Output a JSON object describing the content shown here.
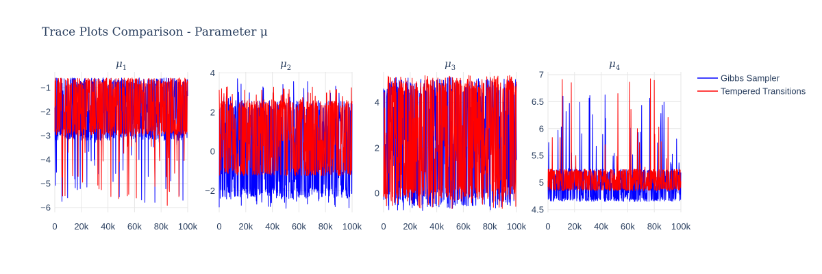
{
  "title": "Trace Plots Comparison - Parameter μ",
  "legend": [
    {
      "name": "Gibbs Sampler",
      "color": "#0000ff"
    },
    {
      "name": "Tempered Transitions",
      "color": "#ff0000"
    }
  ],
  "chart_data": [
    {
      "type": "line",
      "title": "μ1",
      "title_base": "μ",
      "title_sub": "1",
      "xlim": [
        0,
        100000
      ],
      "ylim": [
        -6.2,
        -0.35
      ],
      "xticks": [
        0,
        20000,
        40000,
        60000,
        80000,
        100000
      ],
      "xtick_labels": [
        "0",
        "20k",
        "40k",
        "60k",
        "80k",
        "100k"
      ],
      "yticks": [
        -6,
        -5,
        -4,
        -3,
        -2,
        -1
      ],
      "ytick_labels": [
        "−6",
        "−5",
        "−4",
        "−3",
        "−2",
        "−1"
      ],
      "series": [
        {
          "name": "Gibbs Sampler",
          "color": "#0000ff",
          "band": [
            -3.2,
            -0.6
          ],
          "tail": [
            -5.85,
            -0.6
          ],
          "tail_side": "low",
          "base": -1.9
        },
        {
          "name": "Tempered Transitions",
          "color": "#ff0000",
          "band": [
            -3.0,
            -0.6
          ],
          "tail": [
            -6.0,
            -0.6
          ],
          "tail_side": "low",
          "base": -1.9
        }
      ]
    },
    {
      "type": "line",
      "title": "μ2",
      "title_base": "μ",
      "title_sub": "2",
      "xlim": [
        0,
        100000
      ],
      "ylim": [
        -3.1,
        4.05
      ],
      "xticks": [
        0,
        20000,
        40000,
        60000,
        80000,
        100000
      ],
      "xtick_labels": [
        "0",
        "20k",
        "40k",
        "60k",
        "80k",
        "100k"
      ],
      "yticks": [
        -2,
        0,
        2,
        4
      ],
      "ytick_labels": [
        "−2",
        "0",
        "2",
        "4"
      ],
      "series": [
        {
          "name": "Gibbs Sampler",
          "color": "#0000ff",
          "band": [
            -2.4,
            2.6
          ],
          "tail": [
            -2.9,
            3.8
          ],
          "tail_side": "both",
          "base": 0.5
        },
        {
          "name": "Tempered Transitions",
          "color": "#ff0000",
          "band": [
            -1.25,
            2.6
          ],
          "tail": [
            -1.3,
            3.3
          ],
          "tail_side": "high",
          "base": 0.7
        }
      ]
    },
    {
      "type": "line",
      "title": "μ3",
      "title_base": "μ",
      "title_sub": "3",
      "xlim": [
        0,
        100000
      ],
      "ylim": [
        -0.85,
        5.35
      ],
      "xticks": [
        0,
        20000,
        40000,
        60000,
        80000,
        100000
      ],
      "xtick_labels": [
        "0",
        "20k",
        "40k",
        "60k",
        "80k",
        "100k"
      ],
      "yticks": [
        0,
        2,
        4
      ],
      "ytick_labels": [
        "0",
        "2",
        "4"
      ],
      "series": [
        {
          "name": "Gibbs Sampler",
          "color": "#0000ff",
          "band": [
            -0.6,
            5.0
          ],
          "tail": [
            -0.8,
            5.1
          ],
          "tail_side": "both",
          "base": 2.2
        },
        {
          "name": "Tempered Transitions",
          "color": "#ff0000",
          "band": [
            -0.3,
            5.1
          ],
          "tail": [
            -0.7,
            5.2
          ],
          "tail_side": "both",
          "base": 2.4
        }
      ]
    },
    {
      "type": "line",
      "title": "μ4",
      "title_base": "μ",
      "title_sub": "4",
      "xlim": [
        0,
        100000
      ],
      "ylim": [
        4.45,
        7.05
      ],
      "xticks": [
        0,
        20000,
        40000,
        60000,
        80000,
        100000
      ],
      "xtick_labels": [
        "0",
        "20k",
        "40k",
        "60k",
        "80k",
        "100k"
      ],
      "yticks": [
        4.5,
        5,
        5.5,
        6,
        6.5,
        7
      ],
      "ytick_labels": [
        "4.5",
        "5",
        "5.5",
        "6",
        "6.5",
        "7"
      ],
      "series": [
        {
          "name": "Gibbs Sampler",
          "color": "#0000ff",
          "band": [
            4.65,
            5.25
          ],
          "tail": [
            4.5,
            6.65
          ],
          "tail_side": "high",
          "base": 4.85
        },
        {
          "name": "Tempered Transitions",
          "color": "#ff0000",
          "band": [
            4.85,
            5.25
          ],
          "tail": [
            4.7,
            6.95
          ],
          "tail_side": "high",
          "base": 5.05
        }
      ]
    }
  ]
}
